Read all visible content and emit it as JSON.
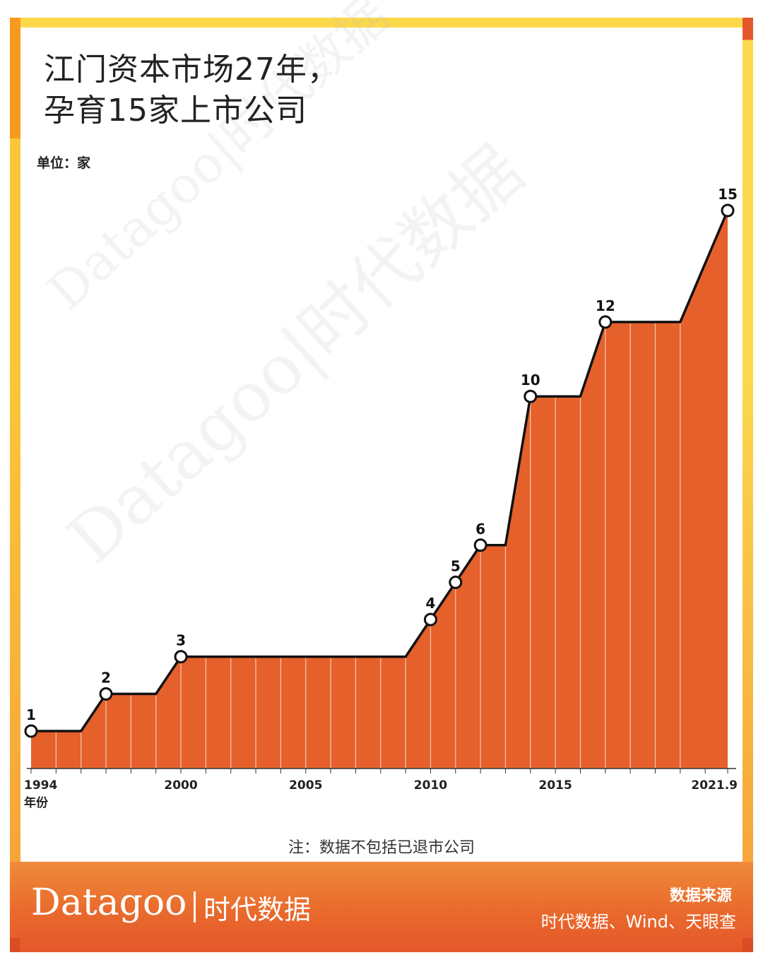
{
  "title_line1": "江门资本市场27年，",
  "title_line2": "孕育15家上市公司",
  "unit": "单位：家",
  "x_axis_unit": "年份",
  "note": "注：数据不包括已退市公司",
  "brand": {
    "name": "Datagoo",
    "name_cn": "时代数据"
  },
  "source": {
    "title": "数据来源",
    "text": "时代数据、Wind、天眼查"
  },
  "watermark": "Datagoo|时代数据",
  "colors": {
    "area": "#e5602b",
    "line": "#111111",
    "border_yellow": "#fcd94b",
    "footer": "#e96a2c"
  },
  "chart_data": {
    "type": "area",
    "x": [
      1994,
      1995,
      1996,
      1997,
      1998,
      1999,
      2000,
      2001,
      2002,
      2003,
      2004,
      2005,
      2006,
      2007,
      2008,
      2009,
      2010,
      2011,
      2012,
      2013,
      2014,
      2015,
      2016,
      2017,
      2018,
      2019,
      2020,
      2021.9
    ],
    "values": [
      1,
      1,
      1,
      2,
      2,
      2,
      3,
      3,
      3,
      3,
      3,
      3,
      3,
      3,
      3,
      3,
      4,
      5,
      6,
      6,
      10,
      10,
      10,
      12,
      12,
      12,
      12,
      15
    ],
    "marked_points": [
      {
        "x": 1994,
        "y": 1,
        "label": "1"
      },
      {
        "x": 1997,
        "y": 2,
        "label": "2"
      },
      {
        "x": 2000,
        "y": 3,
        "label": "3"
      },
      {
        "x": 2010,
        "y": 4,
        "label": "4"
      },
      {
        "x": 2011,
        "y": 5,
        "label": "5"
      },
      {
        "x": 2012,
        "y": 6,
        "label": "6"
      },
      {
        "x": 2014,
        "y": 10,
        "label": "10"
      },
      {
        "x": 2017,
        "y": 12,
        "label": "12"
      },
      {
        "x": 2021.9,
        "y": 15,
        "label": "15"
      }
    ],
    "x_ticks": [
      {
        "value": 1994,
        "label": "1994"
      },
      {
        "value": 2000,
        "label": "2000"
      },
      {
        "value": 2005,
        "label": "2005"
      },
      {
        "value": 2010,
        "label": "2010"
      },
      {
        "value": 2015,
        "label": "2015"
      },
      {
        "value": 2021.9,
        "label": "2021.9"
      }
    ],
    "ylim": [
      0,
      15
    ],
    "grid": false
  }
}
